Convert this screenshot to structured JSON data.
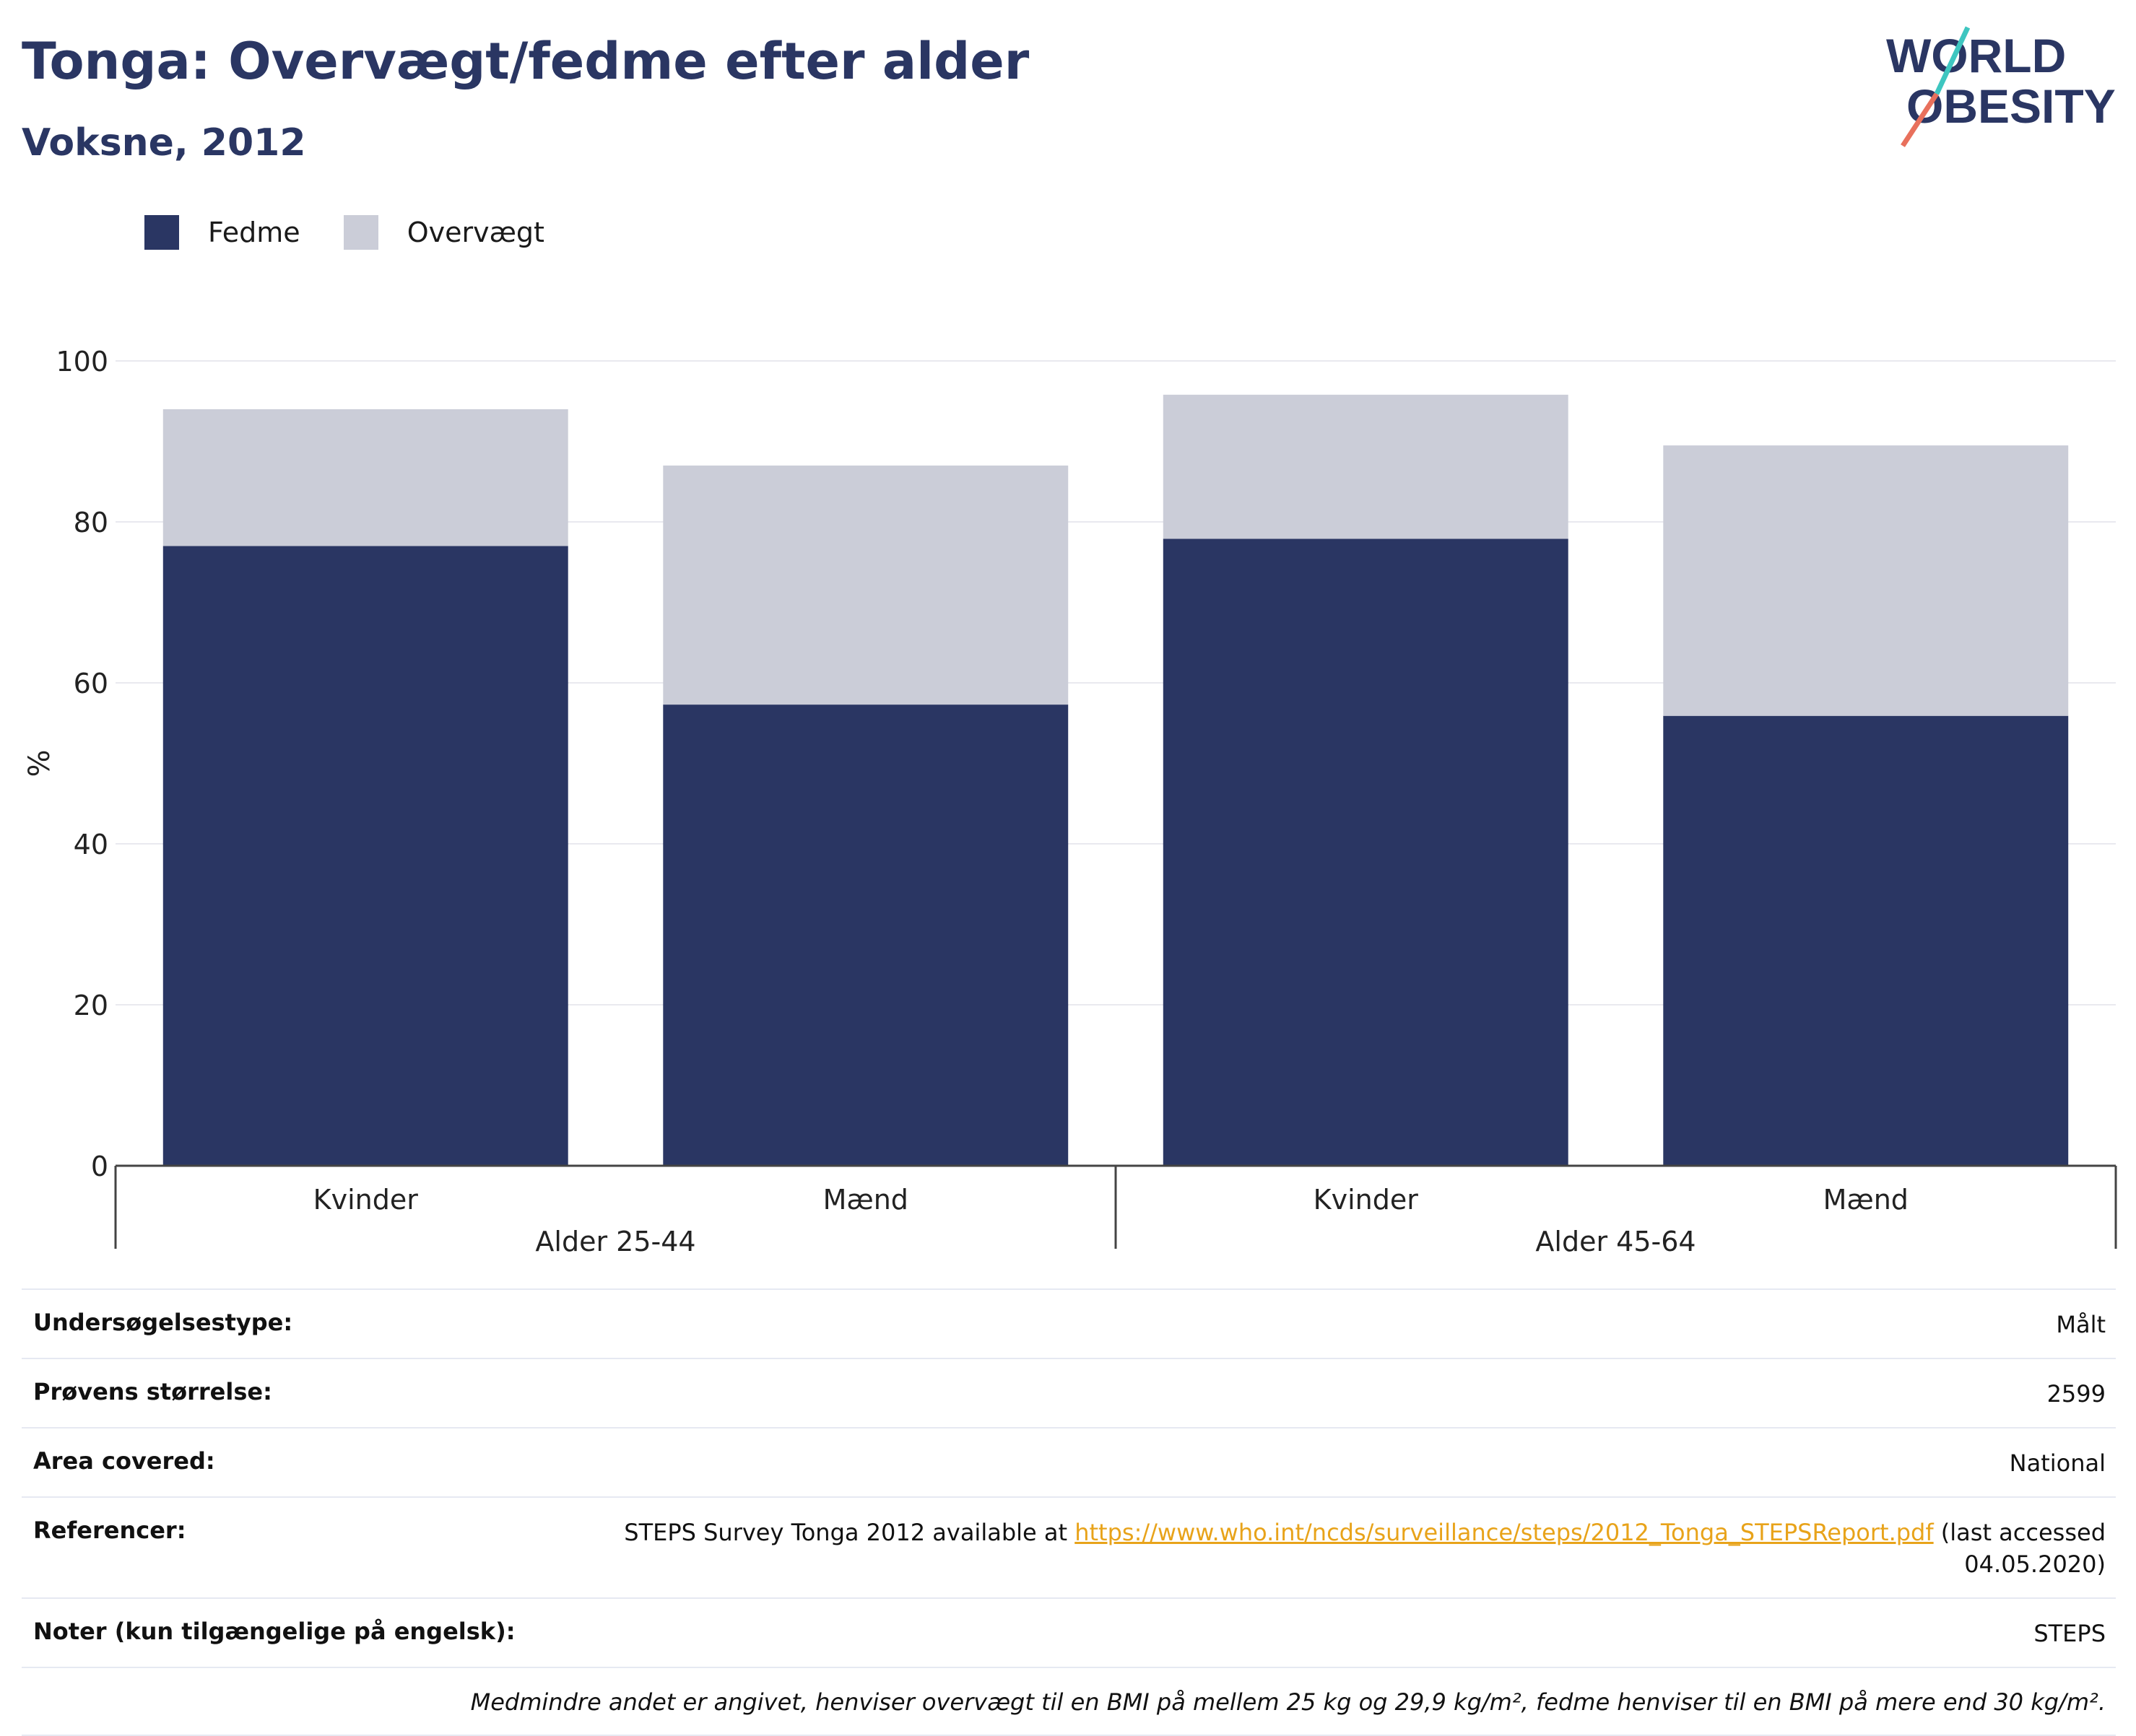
{
  "title": "Tonga: Overvægt/fedme efter alder",
  "subtitle": "Voksne, 2012",
  "logo": {
    "line1": "WORLD",
    "line2": "OBESITY"
  },
  "colors": {
    "fedme": "#2a3663",
    "overvaegt": "#cbcdd8",
    "grid": "#e9e9ef",
    "axis": "#444444",
    "link": "#e8a31a"
  },
  "chart_data": {
    "type": "bar",
    "stacked": true,
    "ylabel": "%",
    "ylim": [
      0,
      100
    ],
    "yticks": [
      0,
      20,
      40,
      60,
      80,
      100
    ],
    "grid": true,
    "legend_position": "top-left",
    "groups": [
      "Alder 25-44",
      "Alder 45-64"
    ],
    "categories": [
      "Kvinder",
      "Mænd",
      "Kvinder",
      "Mænd"
    ],
    "series": [
      {
        "name": "Fedme",
        "color": "#2a3663",
        "values": [
          77,
          57.3,
          77.9,
          55.9
        ]
      },
      {
        "name": "Overvægt",
        "color": "#cbcdd8",
        "values": [
          17,
          29.7,
          17.9,
          33.6
        ]
      }
    ]
  },
  "info": {
    "rows": [
      {
        "key": "Undersøgelsestype:",
        "value": "Målt"
      },
      {
        "key": "Prøvens størrelse:",
        "value": "2599"
      },
      {
        "key": "Area covered:",
        "value": "National"
      }
    ],
    "ref_key": "Referencer:",
    "ref_text": "STEPS Survey Tonga 2012 available at",
    "ref_link": "https://www.who.int/ncds/surveillance/steps/2012_Tonga_STEPSReport.pdf",
    "ref_suffix": "(last accessed 04.05.2020)",
    "notes_key": "Noter (kun tilgængelige på engelsk):",
    "notes_value": "STEPS",
    "footnote": "Medmindre andet er angivet, henviser overvægt til en BMI på mellem 25 kg og 29,9 kg/m², fedme henviser til en BMI på mere end 30 kg/m²."
  }
}
